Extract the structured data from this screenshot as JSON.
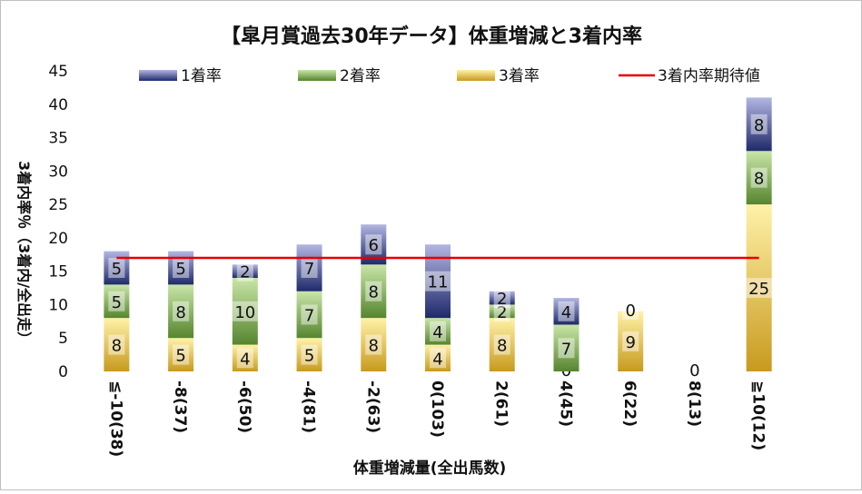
{
  "chart_data": {
    "type": "bar",
    "stacked": true,
    "title": "【皐月賞過去30年データ】体重増減と3着内率",
    "xlabel": "体重増減量(全出馬数)",
    "ylabel": "3着内率％（3着内/全出走）",
    "ylim": [
      0,
      45
    ],
    "yticks": [
      0,
      5,
      10,
      15,
      20,
      25,
      30,
      35,
      40,
      45
    ],
    "grid": false,
    "legend_position": "top",
    "categories": [
      "≦-10(38)",
      "-8(37)",
      "-6(50)",
      "-4(81)",
      "-2(63)",
      "0(103)",
      "2(61)",
      "4(45)",
      "6(22)",
      "8(13)",
      "≧10(12)"
    ],
    "series": [
      {
        "name": "3着率",
        "values": [
          8,
          5,
          4,
          5,
          8,
          4,
          8,
          0,
          9,
          0,
          25
        ],
        "labels": [
          "8",
          "5",
          "4",
          "5",
          "8",
          "4",
          "8",
          "0",
          "9",
          "0",
          "25"
        ],
        "colors": [
          "#fff2a8",
          "#c89a1e"
        ]
      },
      {
        "name": "2着率",
        "values": [
          5,
          8,
          10,
          7,
          8,
          4,
          2,
          7,
          0,
          0,
          8
        ],
        "labels": [
          "5",
          "8",
          "10",
          "7",
          "8",
          "4",
          "2",
          "7",
          "",
          "",
          "8"
        ],
        "colors": [
          "#c9e6a8",
          "#56852e"
        ]
      },
      {
        "name": "1着率",
        "values": [
          5,
          5,
          2,
          7,
          6,
          11,
          2,
          4,
          0,
          0,
          8
        ],
        "labels": [
          "5",
          "5",
          "2",
          "7",
          "6",
          "11",
          "2",
          "4",
          "0",
          "",
          "8"
        ],
        "colors": [
          "#b3b6e2",
          "#1f2a6b"
        ]
      }
    ],
    "reference_line": {
      "name": "3着内率期待値",
      "value": 17,
      "color": "#e60000"
    }
  }
}
